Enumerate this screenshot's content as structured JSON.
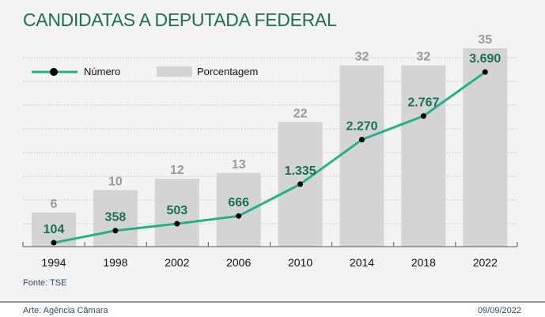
{
  "chart_data": {
    "type": "bar+line",
    "title": "CANDIDATAS A DEPUTADA FEDERAL",
    "categories": [
      "1994",
      "1998",
      "2002",
      "2006",
      "2010",
      "2014",
      "2018",
      "2022"
    ],
    "series": [
      {
        "name": "Porcentagem",
        "type": "bar",
        "values": [
          6,
          10,
          12,
          13,
          22,
          32,
          32,
          35
        ],
        "labels": [
          "6",
          "10",
          "12",
          "13",
          "22",
          "32",
          "32",
          "35"
        ]
      },
      {
        "name": "Número",
        "type": "line",
        "values": [
          104,
          358,
          503,
          666,
          1335,
          2270,
          2767,
          3690
        ],
        "labels": [
          "104",
          "358",
          "503",
          "666",
          "1.335",
          "2.270",
          "2.767",
          "3.690"
        ]
      }
    ],
    "legend": {
      "position": "top-left",
      "entries": [
        "Número",
        "Porcentagem"
      ]
    },
    "grid": true,
    "colors": {
      "bar": "#d4d4d4",
      "bar_label": "#9a9a9a",
      "line": "#22b28a",
      "line_label": "#1c6e55",
      "marker": "#000000"
    }
  },
  "source": "Fonte: TSE",
  "credit": "Arte: Agência Câmara",
  "date": "09/09/2022"
}
